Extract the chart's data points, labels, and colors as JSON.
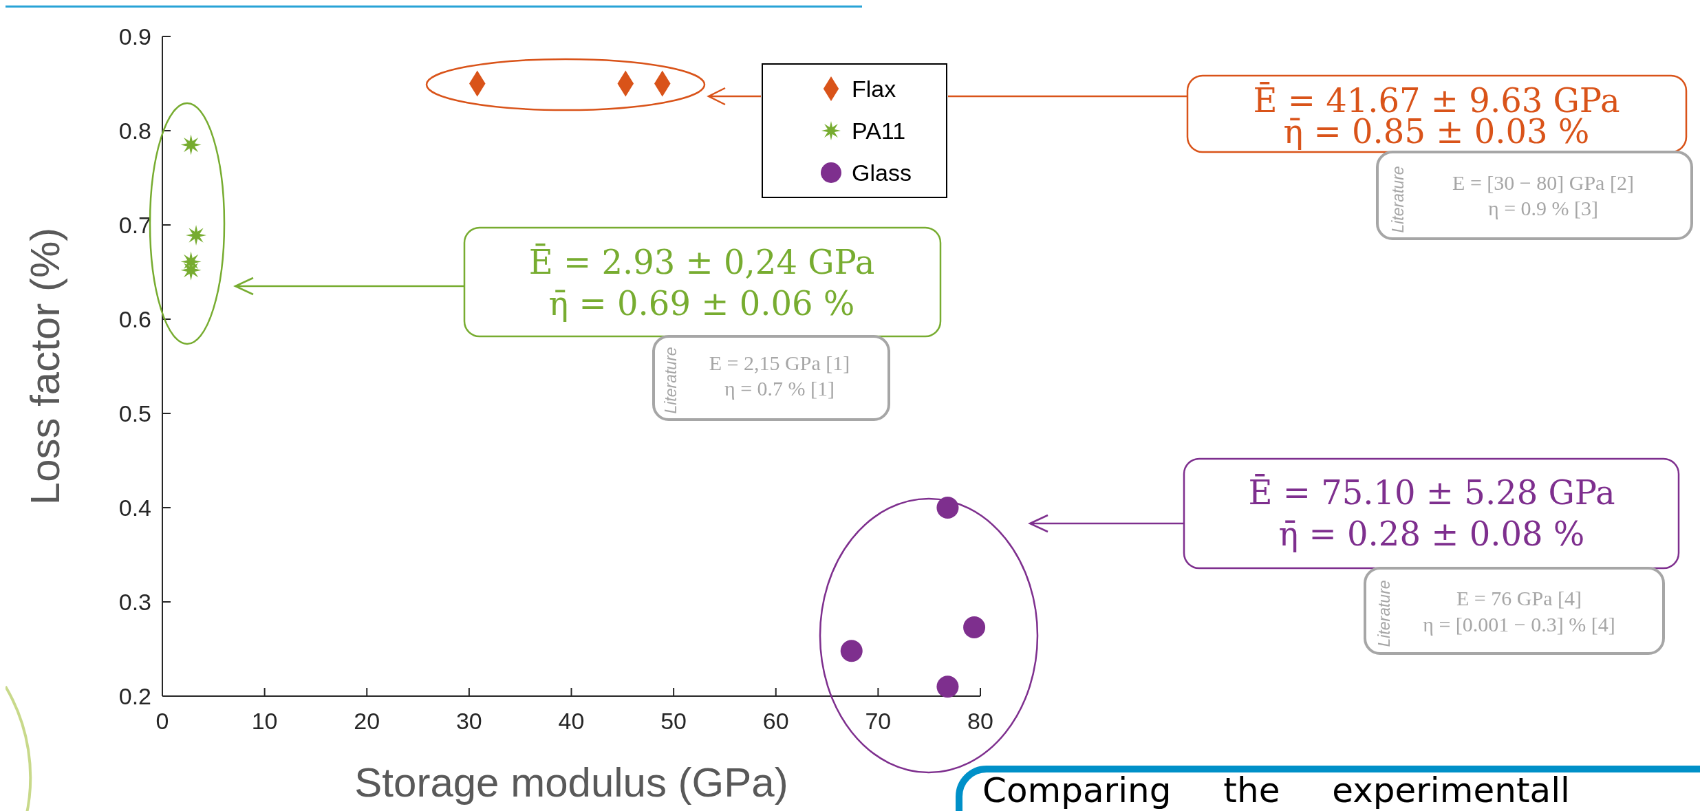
{
  "chart_data": {
    "type": "scatter",
    "xlabel": "Storage modulus (GPa)",
    "ylabel": "Loss factor (%)",
    "xlim": [
      0,
      80
    ],
    "ylim": [
      0.2,
      0.9
    ],
    "xticks": [
      0,
      10,
      20,
      30,
      40,
      50,
      60,
      70,
      80
    ],
    "yticks": [
      0.2,
      0.3,
      0.4,
      0.5,
      0.6,
      0.7,
      0.8,
      0.9
    ],
    "grid": false,
    "legend": "top right",
    "series": [
      {
        "name": "Flax",
        "color": "#d95319",
        "marker": "diamond",
        "x": [
          30.8,
          45.3,
          48.9
        ],
        "values": [
          0.85,
          0.85,
          0.85
        ]
      },
      {
        "name": "PA11",
        "color": "#77ac30",
        "marker": "star",
        "x": [
          2.8,
          3.3,
          2.8,
          2.8
        ],
        "values": [
          0.785,
          0.689,
          0.661,
          0.652
        ]
      },
      {
        "name": "Glass",
        "color": "#7e2f8e",
        "marker": "circle",
        "x": [
          76.8,
          79.4,
          67.4,
          76.8
        ],
        "values": [
          0.4,
          0.273,
          0.248,
          0.21
        ]
      }
    ],
    "annotations": [
      "Ē = 41.67 ± 9.63 GPa",
      "η̄ = 0.85 ± 0.03 %",
      "Literature",
      "E = [30 − 80] GPa [2]",
      "η = 0.9 % [3]",
      "Ē = 2.93 ± 0,24 GPa",
      "η̄ = 0.69 ± 0.06 %",
      "Literature",
      "E = 2,15 GPa [1]",
      "η = 0.7 % [1]",
      "Ē = 75.10 ± 5.28 GPa",
      "η̄ = 0.28 ± 0.08 %",
      "Literature",
      "E = 76 GPa [4]",
      "η = [0.001 − 0.3] % [4]",
      "Comparing the experimentall"
    ]
  }
}
